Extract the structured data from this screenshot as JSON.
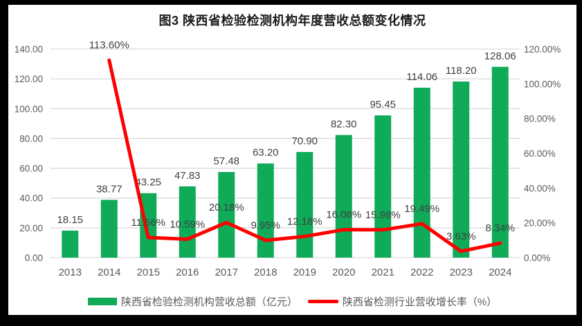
{
  "title": "图3  陕西省检验检测机构年度营收总额变化情况",
  "colors": {
    "bar": "#0FAB58",
    "line": "#FE0000",
    "grid": "#D9D9D9",
    "axis_text": "#595959",
    "data_label_text": "#3F3F3F",
    "frame": "#000000",
    "background": "#FFFFFF"
  },
  "legend": [
    {
      "label": "陕西省检验检测机构营收总额（亿元）"
    },
    {
      "label": "陕西省检测行业营收增长率（%）"
    }
  ],
  "chart_data": {
    "type": "bar+line combo",
    "title": "图3  陕西省检验检测机构年度营收总额变化情况",
    "categories": [
      "2013",
      "2014",
      "2015",
      "2016",
      "2017",
      "2018",
      "2019",
      "2020",
      "2021",
      "2022",
      "2023",
      "2024"
    ],
    "series": [
      {
        "name": "陕西省检验检测机构营收总额（亿元）",
        "type": "bar",
        "axis": "left",
        "values": [
          18.15,
          38.77,
          43.25,
          47.83,
          57.48,
          63.2,
          70.9,
          82.3,
          95.45,
          114.06,
          118.2,
          128.06
        ],
        "data_labels": [
          "18.15",
          "38.77",
          "43.25",
          "47.83",
          "57.48",
          "63.20",
          "70.90",
          "82.30",
          "95.45",
          "114.06",
          "118.20",
          "128.06"
        ]
      },
      {
        "name": "陕西省检测行业营收增长率（%）",
        "type": "line",
        "axis": "right",
        "values": [
          null,
          113.6,
          11.56,
          10.59,
          20.18,
          9.95,
          12.18,
          16.08,
          15.98,
          19.49,
          3.63,
          8.34
        ],
        "data_labels": [
          null,
          "113.60%",
          "11.56%",
          "10.59%",
          "20.18%",
          "9.95%",
          "12.18%",
          "16.08%",
          "15.98%",
          "19.49%",
          "3.63%",
          "8.34%"
        ]
      }
    ],
    "left_axis": {
      "min": 0,
      "max": 140,
      "step": 20,
      "tick_labels": [
        "0.00",
        "20.00",
        "40.00",
        "60.00",
        "80.00",
        "100.00",
        "120.00",
        "140.00"
      ]
    },
    "right_axis": {
      "min": 0,
      "max": 120,
      "step": 20,
      "tick_labels": [
        "0.00%",
        "20.00%",
        "40.00%",
        "60.00%",
        "80.00%",
        "100.00%",
        "120.00%"
      ]
    },
    "grid": "horizontal only",
    "legend_position": "bottom"
  }
}
